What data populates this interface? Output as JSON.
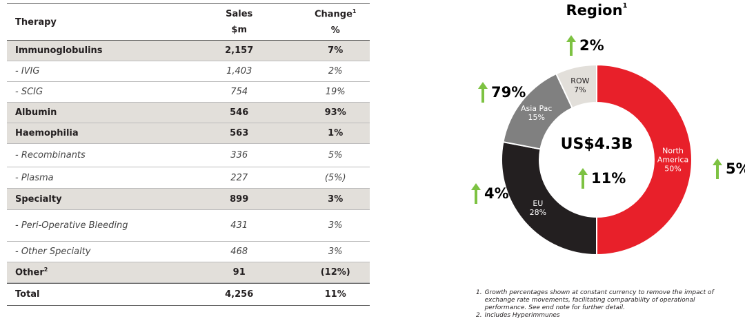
{
  "table": {
    "columns": [
      {
        "label": "Therapy"
      },
      {
        "label": "Sales",
        "unit": "$m"
      },
      {
        "label": "Change",
        "note": "1",
        "unit": "%"
      }
    ],
    "rows": [
      {
        "style": "group",
        "therapy": "Immunoglobulins",
        "sales": "2,157",
        "change": "7%"
      },
      {
        "style": "sub",
        "therapy": "- IVIG",
        "sales": "1,403",
        "change": "2%"
      },
      {
        "style": "sub",
        "therapy": "- SCIG",
        "sales": "754",
        "change": "19%"
      },
      {
        "style": "group",
        "therapy": "Albumin",
        "sales": "546",
        "change": "93%"
      },
      {
        "style": "group",
        "therapy": "Haemophilia",
        "sales": "563",
        "change": "1%"
      },
      {
        "style": "sub",
        "therapy": "- Recombinants",
        "sales": "336",
        "change": "5%"
      },
      {
        "style": "sub",
        "therapy": "- Plasma",
        "sales": "227",
        "change": "(5%)"
      },
      {
        "style": "group",
        "therapy": "Specialty",
        "sales": "899",
        "change": "3%"
      },
      {
        "style": "sub",
        "therapy": "- Peri-Operative Bleeding",
        "sales": "431",
        "change": "3%"
      },
      {
        "style": "sub",
        "therapy": "- Other Specialty",
        "sales": "468",
        "change": "3%"
      },
      {
        "style": "group",
        "therapy": "Other",
        "note": "2",
        "sales": "91",
        "change": "(12%)"
      },
      {
        "style": "total",
        "therapy": "Total",
        "sales": "4,256",
        "change": "11%"
      }
    ]
  },
  "chart_data": {
    "type": "donut",
    "title": "Region",
    "title_note": "1",
    "center_label": "US$4.3B",
    "center_growth": "11%",
    "categories": [
      "North America",
      "EU",
      "Asia Pac",
      "ROW"
    ],
    "values": [
      50,
      28,
      15,
      7
    ],
    "value_labels": [
      "50%",
      "28%",
      "15%",
      "7%"
    ],
    "colors": [
      "#e8202a",
      "#231f20",
      "#808080",
      "#e2dfda"
    ],
    "label_colors": [
      "#ffffff",
      "#ffffff",
      "#ffffff",
      "#231f20"
    ],
    "growth_labels": [
      "5%",
      "4%",
      "79%",
      "2%"
    ],
    "growth_color": "#7dc242"
  },
  "footnotes": [
    {
      "number": "1.",
      "text": "Growth percentages shown at constant currency to remove the impact of exchange rate movements, facilitating comparability of operational performance. See end note for further detail."
    },
    {
      "number": "2.",
      "text": "Includes Hyperimmunes"
    }
  ]
}
